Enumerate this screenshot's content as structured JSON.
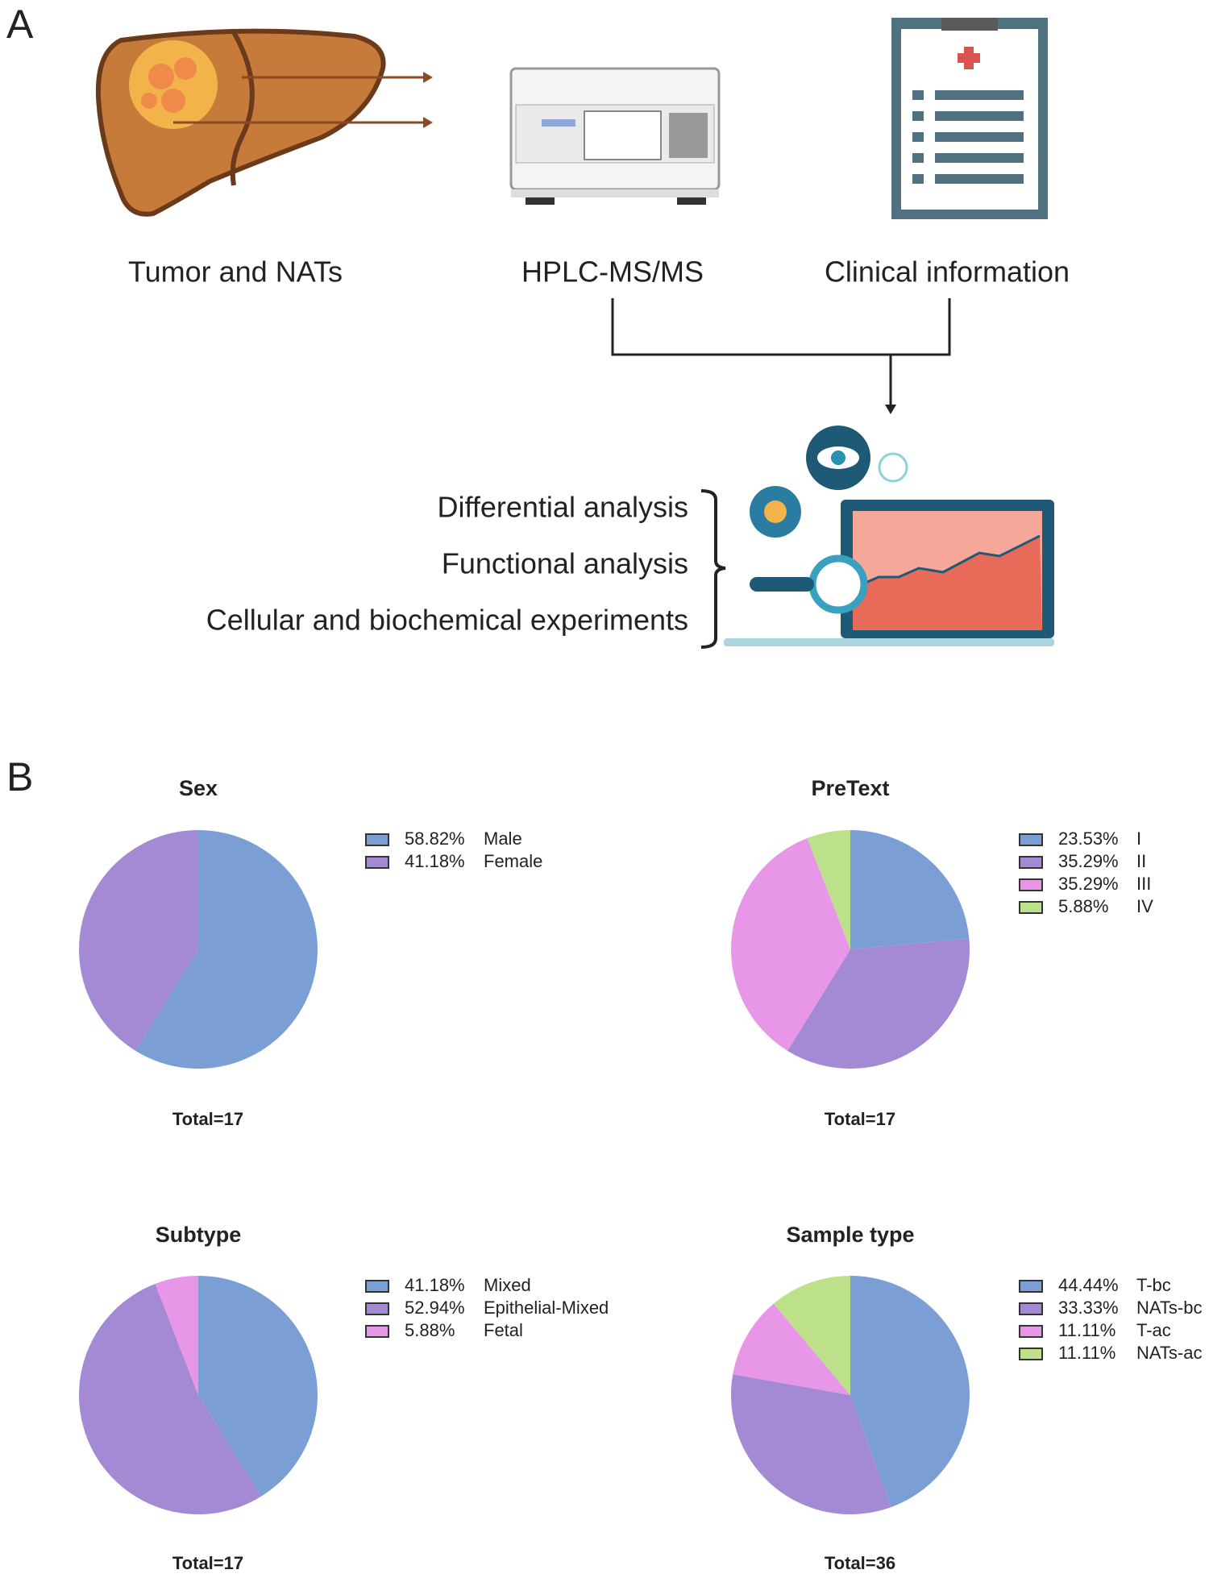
{
  "panel_labels": [
    "A",
    "B"
  ],
  "panel_a": {
    "inputs": [
      "Tumor and NATs",
      "HPLC-MS/MS",
      "Clinical information"
    ],
    "analyses": [
      "Differential analysis",
      "Functional analysis",
      "Cellular and biochemical experiments"
    ]
  },
  "chart_data": [
    {
      "type": "pie",
      "title": "Sex",
      "total": "Total=17",
      "categories": [
        "Male",
        "Female"
      ],
      "values": [
        58.82,
        41.18
      ],
      "value_labels": [
        "58.82%",
        "41.18%"
      ],
      "colors": [
        "#7b9fd4",
        "#a48ad4"
      ]
    },
    {
      "type": "pie",
      "title": "PreText",
      "total": "Total=17",
      "categories": [
        "I",
        "II",
        "III",
        "IV"
      ],
      "values": [
        23.53,
        35.29,
        35.29,
        5.88
      ],
      "value_labels": [
        "23.53%",
        "35.29%",
        "35.29%",
        "5.88%"
      ],
      "colors": [
        "#7b9fd4",
        "#a48ad4",
        "#e896e8",
        "#bde08a"
      ]
    },
    {
      "type": "pie",
      "title": "Subtype",
      "total": "Total=17",
      "categories": [
        "Mixed",
        "Epithelial-Mixed",
        "Fetal"
      ],
      "values": [
        41.18,
        52.94,
        5.88
      ],
      "value_labels": [
        "41.18%",
        "52.94%",
        "5.88%"
      ],
      "colors": [
        "#7b9fd4",
        "#a48ad4",
        "#e896e8"
      ]
    },
    {
      "type": "pie",
      "title": "Sample type",
      "total": "Total=36",
      "categories": [
        "T-bc",
        "NATs-bc",
        "T-ac",
        "NATs-ac"
      ],
      "values": [
        44.44,
        33.33,
        11.11,
        11.11
      ],
      "value_labels": [
        "44.44%",
        "33.33%",
        "11.11%",
        "11.11%"
      ],
      "colors": [
        "#7b9fd4",
        "#a48ad4",
        "#e896e8",
        "#bde08a"
      ]
    }
  ]
}
